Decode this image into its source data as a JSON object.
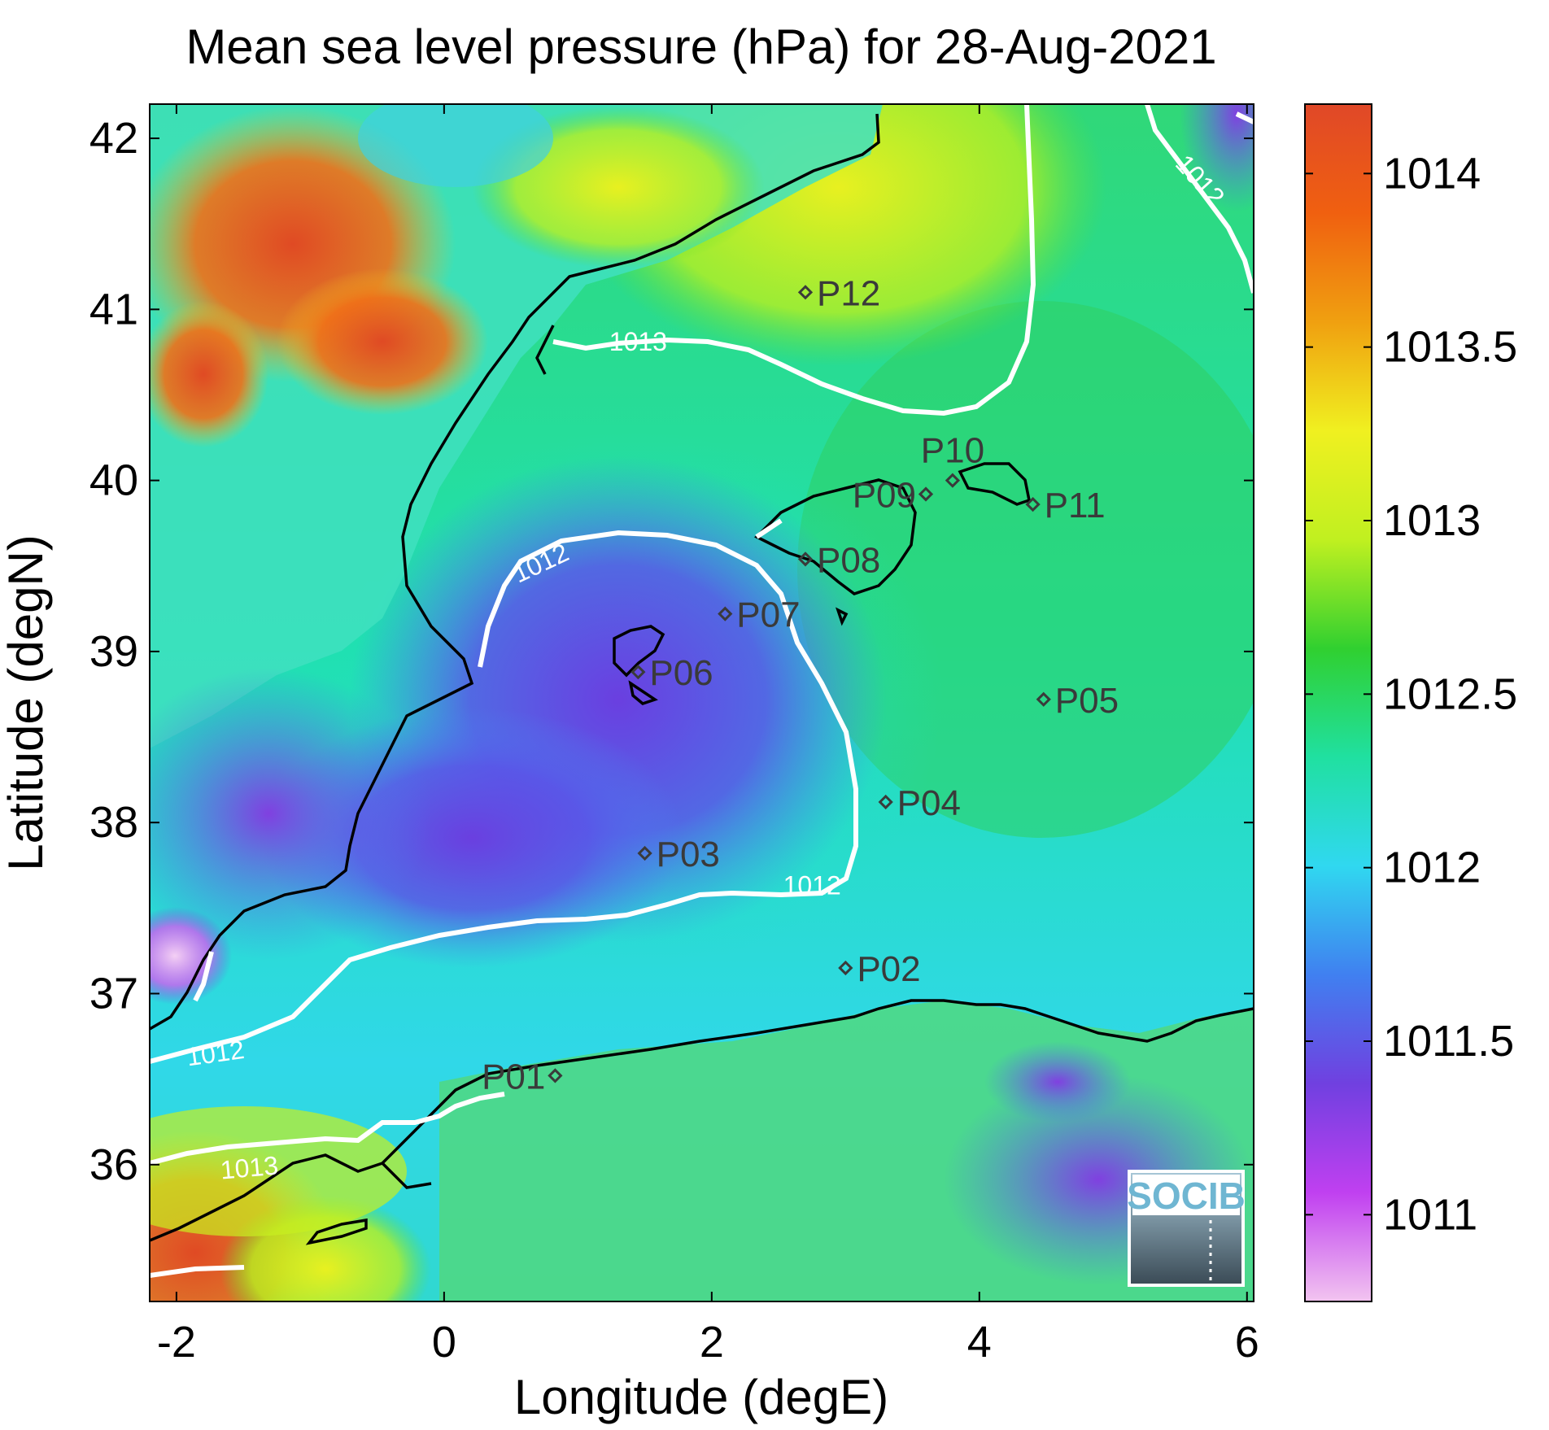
{
  "title": "Mean sea level pressure (hPa) for 28-Aug-2021",
  "xlabel": "Longitude (degE)",
  "ylabel": "Latitude (degN)",
  "xlim": [
    -2.2,
    6.05
  ],
  "ylim": [
    35.2,
    42.2
  ],
  "xticks": [
    {
      "v": -2,
      "label": "-2"
    },
    {
      "v": 0,
      "label": "0"
    },
    {
      "v": 2,
      "label": "2"
    },
    {
      "v": 4,
      "label": "4"
    },
    {
      "v": 6,
      "label": "6"
    }
  ],
  "yticks": [
    {
      "v": 36,
      "label": "36"
    },
    {
      "v": 37,
      "label": "37"
    },
    {
      "v": 38,
      "label": "38"
    },
    {
      "v": 39,
      "label": "39"
    },
    {
      "v": 40,
      "label": "40"
    },
    {
      "v": 41,
      "label": "41"
    },
    {
      "v": 42,
      "label": "42"
    }
  ],
  "colorbar": {
    "range": [
      1010.75,
      1014.2
    ],
    "ticks": [
      {
        "v": 1011,
        "label": "1011"
      },
      {
        "v": 1011.5,
        "label": "1011.5"
      },
      {
        "v": 1012,
        "label": "1012"
      },
      {
        "v": 1012.5,
        "label": "1012.5"
      },
      {
        "v": 1013,
        "label": "1013"
      },
      {
        "v": 1013.5,
        "label": "1013.5"
      },
      {
        "v": 1014,
        "label": "1014"
      }
    ],
    "colors": [
      "#f2c4f0",
      "#c040f0",
      "#7040e0",
      "#4080f0",
      "#30d8f0",
      "#20e0a0",
      "#30d030",
      "#c0f020",
      "#f0f020",
      "#f0a010",
      "#f06010",
      "#e04828"
    ]
  },
  "stations": [
    {
      "name": "P01",
      "lon": 0.83,
      "lat": 36.52,
      "anchor": "end"
    },
    {
      "name": "P02",
      "lon": 3.0,
      "lat": 37.15,
      "anchor": "start"
    },
    {
      "name": "P03",
      "lon": 1.5,
      "lat": 37.82,
      "anchor": "start"
    },
    {
      "name": "P04",
      "lon": 3.3,
      "lat": 38.12,
      "anchor": "start"
    },
    {
      "name": "P05",
      "lon": 4.48,
      "lat": 38.72,
      "anchor": "start"
    },
    {
      "name": "P06",
      "lon": 1.45,
      "lat": 38.88,
      "anchor": "start"
    },
    {
      "name": "P07",
      "lon": 2.1,
      "lat": 39.22,
      "anchor": "start"
    },
    {
      "name": "P08",
      "lon": 2.7,
      "lat": 39.54,
      "anchor": "start"
    },
    {
      "name": "P09",
      "lon": 3.6,
      "lat": 39.92,
      "anchor": "end"
    },
    {
      "name": "P10",
      "lon": 3.8,
      "lat": 40.0,
      "anchor": "above"
    },
    {
      "name": "P11",
      "lon": 4.4,
      "lat": 39.86,
      "anchor": "start"
    },
    {
      "name": "P12",
      "lon": 2.7,
      "lat": 41.1,
      "anchor": "start"
    }
  ],
  "contour_labels": [
    {
      "label": "1013",
      "lon": 1.45,
      "lat": 40.76,
      "rotate": 0
    },
    {
      "label": "1012",
      "lon": 0.75,
      "lat": 39.47,
      "rotate": -25
    },
    {
      "label": "1012",
      "lon": 2.75,
      "lat": 37.58,
      "rotate": 0
    },
    {
      "label": "1012",
      "lon": -1.7,
      "lat": 36.6,
      "rotate": -8
    },
    {
      "label": "1013",
      "lon": -1.45,
      "lat": 35.93,
      "rotate": -5
    },
    {
      "label": "1012",
      "lon": 5.6,
      "lat": 41.72,
      "rotate": 48
    }
  ],
  "logo": {
    "text": "SOCIB"
  }
}
